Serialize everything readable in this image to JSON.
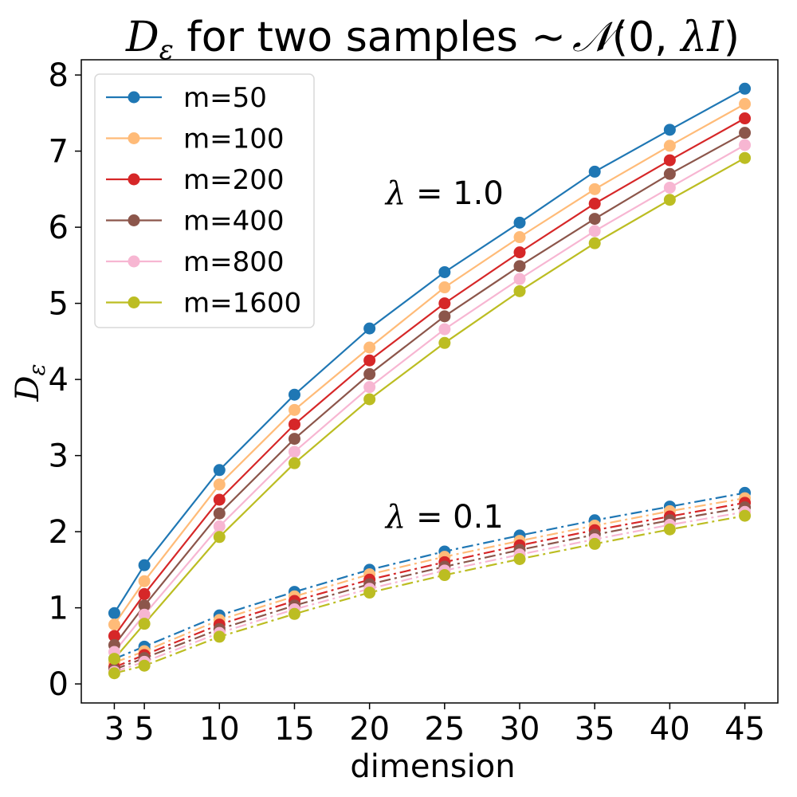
{
  "chart_data": {
    "type": "line",
    "title": {
      "pre_symbol": "D",
      "pre_subscript": "ε",
      "mid_text": " for two samples ",
      "tilde": "~",
      "dist_symbol": "𝒩",
      "dist_args_open": "(0, ",
      "dist_lambda": "λ",
      "dist_var": "I",
      "dist_args_close": ")"
    },
    "xlabel": "dimension",
    "ylabel": {
      "symbol": "D",
      "subscript": "ε"
    },
    "x": [
      3,
      5,
      10,
      15,
      20,
      25,
      30,
      35,
      40,
      45
    ],
    "xticks": [
      3,
      5,
      10,
      15,
      20,
      25,
      30,
      35,
      40,
      45
    ],
    "yticks": [
      0,
      1,
      2,
      3,
      4,
      5,
      6,
      7,
      8
    ],
    "xlim": [
      0.8,
      47.2
    ],
    "ylim": [
      -0.25,
      8.2
    ],
    "grid": false,
    "legend_position": "upper-left",
    "annotations": [
      {
        "lambda": "λ",
        "eq": " = 1.0",
        "x": 25,
        "y": 6.45
      },
      {
        "lambda": "λ",
        "eq": " = 0.1",
        "x": 25,
        "y": 2.2
      }
    ],
    "groups": [
      {
        "lambda": "1.0",
        "linestyle": "solid"
      },
      {
        "lambda": "0.1",
        "linestyle": "dashdot"
      }
    ],
    "series": [
      {
        "name": "m=50",
        "color": "#1f77b4",
        "lambda_1_0": [
          0.93,
          1.56,
          2.81,
          3.8,
          4.67,
          5.41,
          6.06,
          6.73,
          7.28,
          7.82
        ],
        "lambda_0_1": [
          0.33,
          0.49,
          0.9,
          1.21,
          1.5,
          1.74,
          1.95,
          2.15,
          2.33,
          2.51
        ]
      },
      {
        "name": "m=100",
        "color": "#ffbb78",
        "lambda_1_0": [
          0.78,
          1.35,
          2.62,
          3.6,
          4.42,
          5.21,
          5.87,
          6.5,
          7.07,
          7.62
        ],
        "lambda_0_1": [
          0.28,
          0.43,
          0.84,
          1.15,
          1.44,
          1.67,
          1.88,
          2.08,
          2.27,
          2.44
        ]
      },
      {
        "name": "m=200",
        "color": "#d62728",
        "lambda_1_0": [
          0.63,
          1.18,
          2.42,
          3.41,
          4.25,
          5.0,
          5.67,
          6.31,
          6.88,
          7.43
        ],
        "lambda_0_1": [
          0.22,
          0.38,
          0.78,
          1.09,
          1.37,
          1.6,
          1.82,
          2.02,
          2.2,
          2.38
        ]
      },
      {
        "name": "m=400",
        "color": "#8c564b",
        "lambda_1_0": [
          0.51,
          1.03,
          2.24,
          3.22,
          4.07,
          4.83,
          5.49,
          6.11,
          6.7,
          7.24
        ],
        "lambda_0_1": [
          0.19,
          0.34,
          0.72,
          1.03,
          1.31,
          1.54,
          1.76,
          1.96,
          2.15,
          2.32
        ]
      },
      {
        "name": "m=800",
        "color": "#f7b6d2",
        "lambda_1_0": [
          0.42,
          0.91,
          2.07,
          3.05,
          3.9,
          4.66,
          5.32,
          5.95,
          6.52,
          7.08
        ],
        "lambda_0_1": [
          0.16,
          0.29,
          0.67,
          0.98,
          1.25,
          1.49,
          1.7,
          1.9,
          2.09,
          2.26
        ]
      },
      {
        "name": "m=1600",
        "color": "#bcbd22",
        "lambda_1_0": [
          0.33,
          0.79,
          1.93,
          2.9,
          3.74,
          4.48,
          5.16,
          5.79,
          6.36,
          6.91
        ],
        "lambda_0_1": [
          0.14,
          0.24,
          0.62,
          0.92,
          1.2,
          1.43,
          1.64,
          1.84,
          2.03,
          2.21
        ]
      }
    ]
  }
}
